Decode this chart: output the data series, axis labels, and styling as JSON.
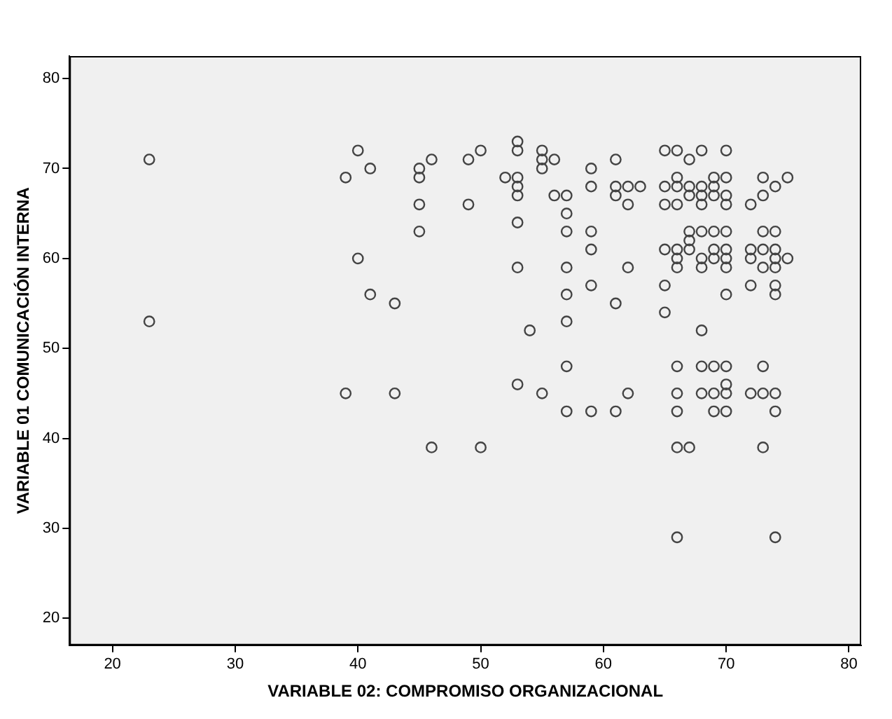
{
  "chart_data": {
    "type": "scatter",
    "xlabel": "VARIABLE 02: COMPROMISO ORGANIZACIONAL",
    "ylabel": "VARIABLE 01 COMUNICACIÓN INTERNA",
    "x": [
      23,
      23,
      40,
      41,
      39,
      45,
      45,
      46,
      45,
      45,
      40,
      41,
      43,
      39,
      43,
      46,
      49,
      50,
      53,
      53,
      55,
      55,
      56,
      55,
      59,
      61,
      52,
      53,
      53,
      53,
      56,
      57,
      59,
      61,
      62,
      63,
      61,
      62,
      49,
      53,
      57,
      57,
      59,
      59,
      53,
      57,
      62,
      59,
      57,
      61,
      57,
      54,
      57,
      53,
      55,
      62,
      57,
      59,
      61,
      50,
      65,
      66,
      68,
      70,
      67,
      66,
      69,
      70,
      73,
      75,
      65,
      66,
      67,
      68,
      69,
      74,
      67,
      68,
      69,
      70,
      73,
      65,
      66,
      68,
      70,
      72,
      67,
      68,
      69,
      70,
      73,
      74,
      67,
      65,
      66,
      67,
      69,
      70,
      72,
      73,
      74,
      66,
      68,
      69,
      70,
      72,
      74,
      75,
      66,
      68,
      70,
      73,
      74,
      65,
      72,
      74,
      70,
      74,
      65,
      68,
      66,
      68,
      69,
      70,
      73,
      70,
      66,
      68,
      69,
      70,
      72,
      73,
      74,
      66,
      69,
      70,
      74,
      66,
      67,
      73,
      66,
      74
    ],
    "values": [
      71,
      53,
      72,
      70,
      69,
      70,
      69,
      71,
      66,
      63,
      60,
      56,
      55,
      45,
      45,
      39,
      71,
      72,
      72,
      73,
      72,
      71,
      71,
      70,
      70,
      71,
      69,
      69,
      68,
      67,
      67,
      67,
      68,
      68,
      68,
      68,
      67,
      66,
      66,
      64,
      65,
      63,
      63,
      61,
      59,
      59,
      59,
      57,
      56,
      55,
      53,
      52,
      48,
      46,
      45,
      45,
      43,
      43,
      43,
      39,
      72,
      72,
      72,
      72,
      71,
      69,
      69,
      69,
      69,
      69,
      68,
      68,
      68,
      68,
      68,
      68,
      67,
      67,
      67,
      67,
      67,
      66,
      66,
      66,
      66,
      66,
      63,
      63,
      63,
      63,
      63,
      63,
      62,
      61,
      61,
      61,
      61,
      61,
      61,
      61,
      61,
      60,
      60,
      60,
      60,
      60,
      60,
      60,
      59,
      59,
      59,
      59,
      59,
      57,
      57,
      57,
      56,
      56,
      54,
      52,
      48,
      48,
      48,
      48,
      48,
      46,
      45,
      45,
      45,
      45,
      45,
      45,
      45,
      43,
      43,
      43,
      43,
      39,
      39,
      39,
      29,
      29
    ],
    "color": "#444444",
    "marker": "circle",
    "xlim": [
      16.5,
      81
    ],
    "ylim": [
      17,
      82.5
    ],
    "xticks": [
      20,
      30,
      40,
      50,
      60,
      70,
      80
    ],
    "yticks": [
      20,
      30,
      40,
      50,
      60,
      70,
      80
    ],
    "grid": false,
    "legend": false
  }
}
